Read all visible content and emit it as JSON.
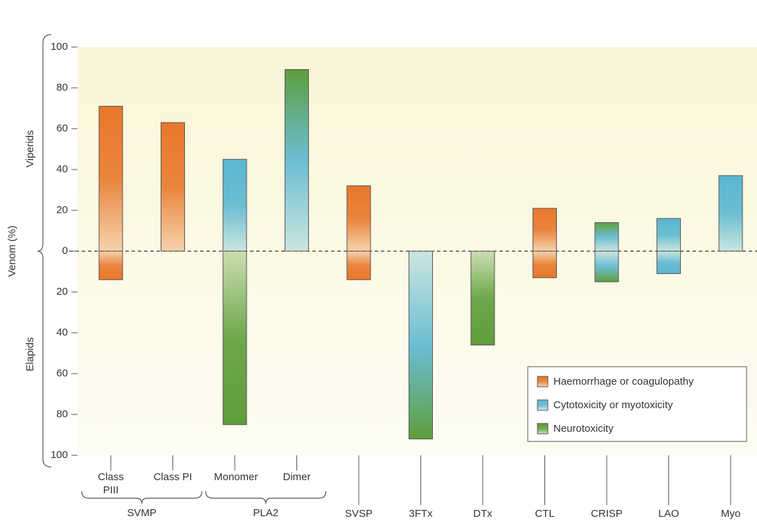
{
  "chart_data": {
    "type": "diverging-bar",
    "y_title": "Venom (%)",
    "upper_label": "Viperids",
    "lower_label": "Elapids",
    "categories": [
      "Class PIII",
      "Class PI",
      "Monomer",
      "Dimer",
      "SVSP",
      "3FTx",
      "DTx",
      "CTL",
      "CRISP",
      "LAO",
      "Myo"
    ],
    "groups": [
      {
        "name": "SVMP",
        "span": [
          0,
          1
        ]
      },
      {
        "name": "PLA2",
        "span": [
          2,
          3
        ]
      }
    ],
    "series": [
      {
        "name": "Viperids",
        "values": [
          71,
          63,
          45,
          89,
          32,
          null,
          null,
          21,
          14,
          16,
          37
        ],
        "colors": [
          "#e8782a",
          "#e8782a",
          "#5bb7d0",
          [
            "#5bb7d0",
            "#5e9e3a"
          ],
          "#e8782a",
          null,
          null,
          "#e8782a",
          [
            "#5bb7d0",
            "#5e9e3a"
          ],
          "#5bb7d0",
          "#5bb7d0"
        ]
      },
      {
        "name": "Elapids",
        "values": [
          -14,
          null,
          -85,
          null,
          -14,
          -92,
          -46,
          -13,
          -15,
          -11,
          null
        ],
        "colors": [
          "#e8782a",
          null,
          "#5e9e3a",
          null,
          "#e8782a",
          [
            "#5bb7d0",
            "#5e9e3a"
          ],
          "#5e9e3a",
          "#e8782a",
          [
            "#5bb7d0",
            "#5e9e3a"
          ],
          "#5bb7d0",
          null
        ]
      }
    ],
    "legend": [
      {
        "name": "Haemorrhage or coagulopathy",
        "color": "#e8782a"
      },
      {
        "name": "Cytotoxicity or myotoxicity",
        "color": "#5bb7d0"
      },
      {
        "name": "Neurotoxicity",
        "color": "#5e9e3a"
      }
    ],
    "ylim": [
      -100,
      100
    ],
    "yticks": [
      100,
      80,
      60,
      40,
      20,
      0,
      {
        "value": -20,
        "label": "20"
      },
      {
        "value": -40,
        "label": "40"
      },
      {
        "value": -60,
        "label": "60"
      },
      {
        "value": -80,
        "label": "80"
      },
      {
        "value": -100,
        "label": "100"
      }
    ]
  }
}
